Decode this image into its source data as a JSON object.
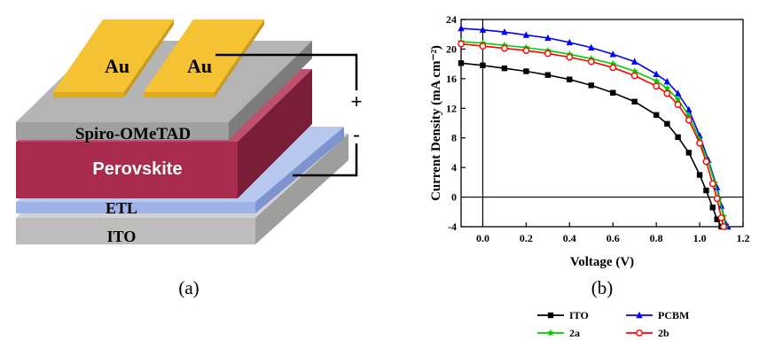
{
  "panel_a": {
    "caption": "(a)",
    "layers": {
      "au_left": "Au",
      "au_right": "Au",
      "spiro": "Spiro-OMeTAD",
      "perovskite": "Perovskite",
      "etl": "ETL",
      "ito": "ITO"
    },
    "terminals": {
      "plus": "+",
      "minus": "-"
    }
  },
  "panel_b": {
    "caption": "(b)"
  },
  "chart_data": {
    "type": "line",
    "xlabel": "Voltage (V)",
    "ylabel": "Current Density (mA cm⁻²)",
    "xlim": [
      -0.1,
      1.2
    ],
    "ylim": [
      -4,
      24
    ],
    "xticks": [
      "0.0",
      "0.2",
      "0.4",
      "0.6",
      "0.8",
      "1.0",
      "1.2"
    ],
    "yticks": [
      "-4",
      "0",
      "4",
      "8",
      "12",
      "16",
      "20",
      "24"
    ],
    "legend_position": "bottom-right",
    "series": [
      {
        "name": "ITO",
        "color": "#000000",
        "marker": "square",
        "x": [
          -0.1,
          0.0,
          0.1,
          0.2,
          0.3,
          0.4,
          0.5,
          0.6,
          0.7,
          0.8,
          0.85,
          0.9,
          0.95,
          1.0,
          1.03,
          1.06,
          1.08,
          1.1,
          1.12
        ],
        "y": [
          18.1,
          17.8,
          17.4,
          17.0,
          16.5,
          15.9,
          15.1,
          14.1,
          12.9,
          11.1,
          9.9,
          8.1,
          6.0,
          3.0,
          0.9,
          -1.4,
          -3.0,
          -4.0,
          -4.0
        ]
      },
      {
        "name": "PCBM",
        "color": "#0000ff",
        "marker": "triangle",
        "x": [
          -0.1,
          0.0,
          0.1,
          0.2,
          0.3,
          0.4,
          0.5,
          0.6,
          0.7,
          0.8,
          0.85,
          0.9,
          0.95,
          1.0,
          1.04,
          1.08,
          1.1,
          1.12,
          1.13
        ],
        "y": [
          22.8,
          22.6,
          22.3,
          21.9,
          21.5,
          20.9,
          20.2,
          19.3,
          18.3,
          16.6,
          15.6,
          14.0,
          11.8,
          8.3,
          5.0,
          1.3,
          -1.2,
          -3.6,
          -4.0
        ]
      },
      {
        "name": "2a",
        "color": "#00cc00",
        "marker": "star",
        "x": [
          -0.1,
          0.0,
          0.1,
          0.2,
          0.3,
          0.4,
          0.5,
          0.6,
          0.7,
          0.8,
          0.85,
          0.9,
          0.95,
          1.0,
          1.04,
          1.07,
          1.09,
          1.11,
          1.12
        ],
        "y": [
          21.0,
          20.8,
          20.5,
          20.2,
          19.8,
          19.3,
          18.7,
          18.0,
          17.0,
          15.7,
          14.7,
          13.2,
          11.0,
          7.8,
          4.7,
          1.9,
          -0.2,
          -2.6,
          -4.0
        ]
      },
      {
        "name": "2b",
        "color": "#ff0000",
        "marker": "circle",
        "x": [
          -0.1,
          0.0,
          0.1,
          0.2,
          0.3,
          0.4,
          0.5,
          0.6,
          0.7,
          0.8,
          0.85,
          0.9,
          0.95,
          1.0,
          1.03,
          1.06,
          1.08,
          1.1,
          1.11
        ],
        "y": [
          20.7,
          20.4,
          20.1,
          19.8,
          19.4,
          18.9,
          18.3,
          17.5,
          16.4,
          15.0,
          14.0,
          12.5,
          10.4,
          7.3,
          4.8,
          1.8,
          -0.2,
          -2.8,
          -4.0
        ]
      }
    ]
  }
}
